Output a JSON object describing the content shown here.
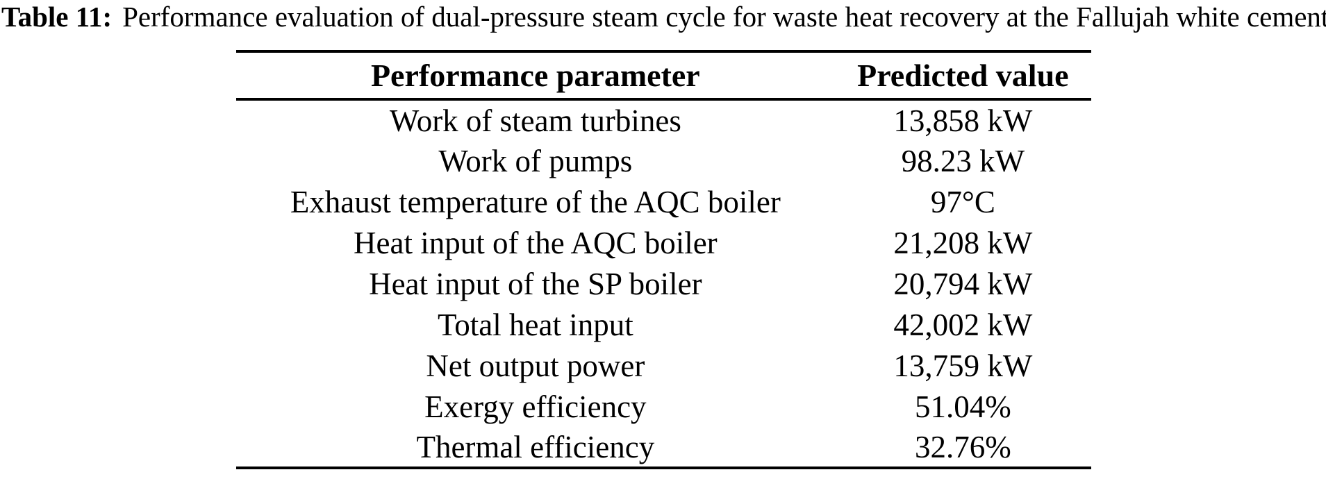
{
  "caption": {
    "label": "Table 11:",
    "text": "Performance evaluation of dual-pressure steam cycle for waste heat recovery at the Fallujah white cement"
  },
  "table": {
    "headers": [
      "Performance parameter",
      "Predicted value"
    ],
    "rows": [
      {
        "parameter": "Work of steam turbines",
        "value": "13,858 kW"
      },
      {
        "parameter": "Work of pumps",
        "value": "98.23 kW"
      },
      {
        "parameter": "Exhaust temperature of the AQC boiler",
        "value": "97°C"
      },
      {
        "parameter": "Heat input of the AQC boiler",
        "value": "21,208 kW"
      },
      {
        "parameter": "Heat input of the SP boiler",
        "value": "20,794 kW"
      },
      {
        "parameter": "Total heat input",
        "value": "42,002 kW"
      },
      {
        "parameter": "Net output power",
        "value": "13,759 kW"
      },
      {
        "parameter": "Exergy efficiency",
        "value": "51.04%"
      },
      {
        "parameter": "Thermal efficiency",
        "value": "32.76%"
      }
    ]
  },
  "colors": {
    "text": "#000000",
    "background": "#ffffff",
    "rule": "#000000"
  },
  "chart_data": {
    "type": "table",
    "title": "Table 11: Performance evaluation of dual-pressure steam cycle for waste heat recovery at the Fallujah white cement",
    "columns": [
      "Performance parameter",
      "Predicted value"
    ],
    "rows": [
      [
        "Work of steam turbines",
        "13,858 kW"
      ],
      [
        "Work of pumps",
        "98.23 kW"
      ],
      [
        "Exhaust temperature of the AQC boiler",
        "97°C"
      ],
      [
        "Heat input of the AQC boiler",
        "21,208 kW"
      ],
      [
        "Heat input of the SP boiler",
        "20,794 kW"
      ],
      [
        "Total heat input",
        "42,002 kW"
      ],
      [
        "Net output power",
        "13,759 kW"
      ],
      [
        "Exergy efficiency",
        "51.04%"
      ],
      [
        "Thermal efficiency",
        "32.76%"
      ]
    ]
  }
}
